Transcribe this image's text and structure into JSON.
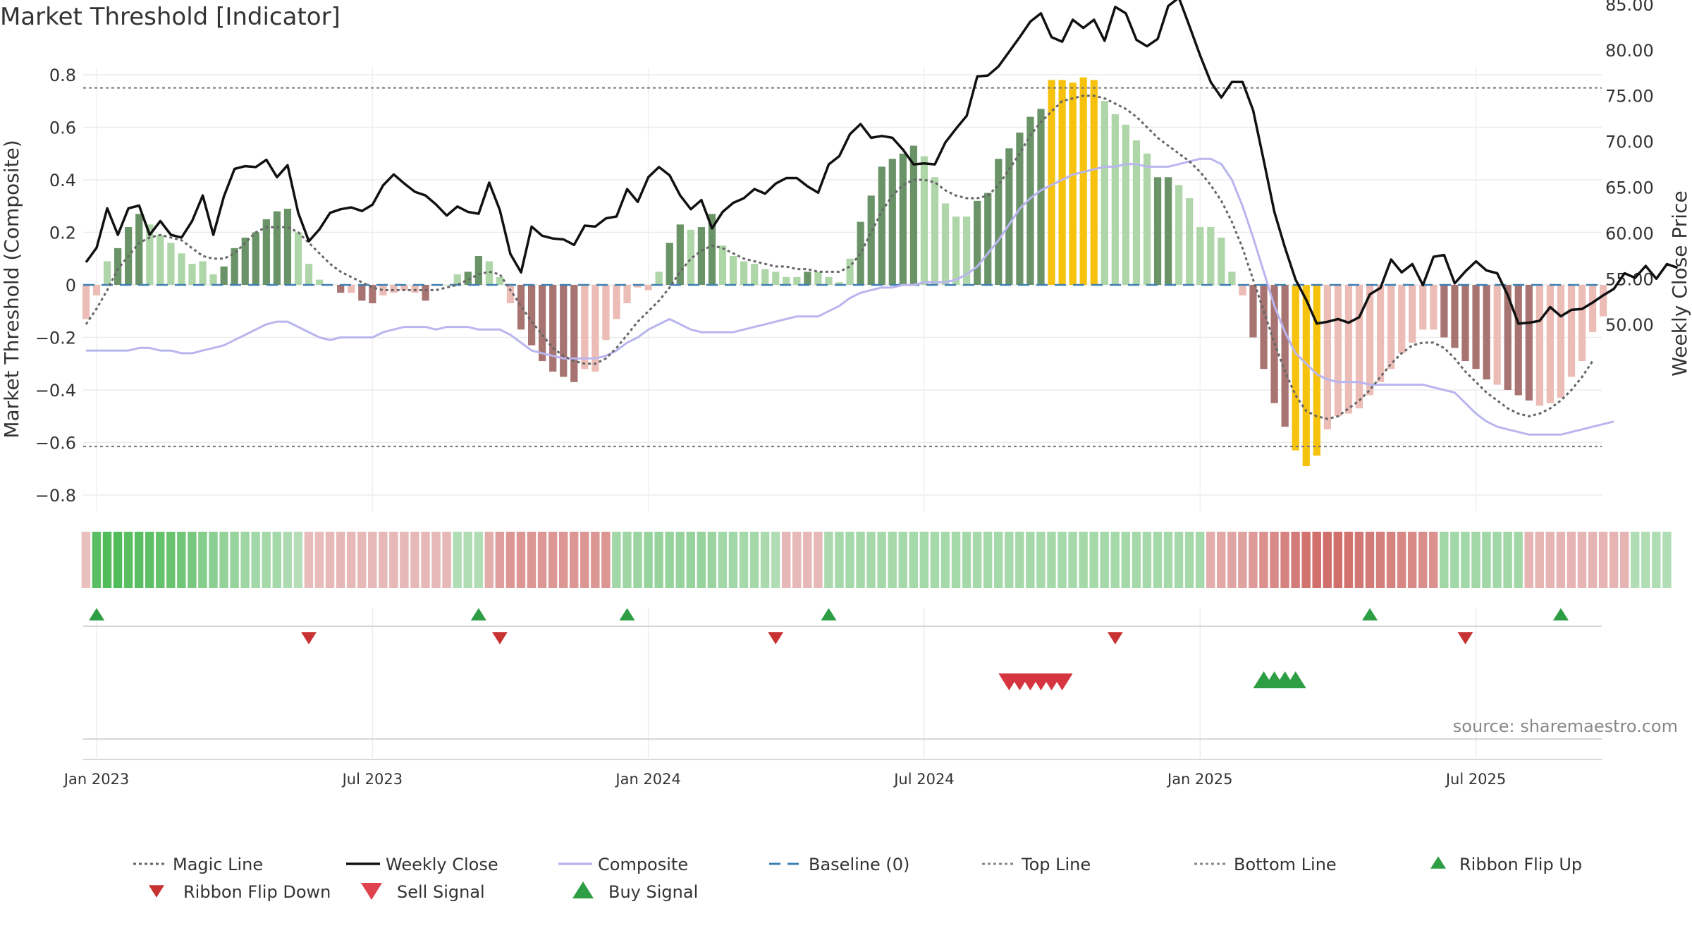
{
  "title": "Market Threshold [Indicator]",
  "source": "source: sharemaestro.com",
  "colors": {
    "strong_pos": "#6a9468",
    "weak_pos": "#aed6a8",
    "strong_neg": "#a87472",
    "weak_neg": "#ecbcb6",
    "extreme": "#f6c20e",
    "magic": "#666666",
    "close": "#111111",
    "composite": "#b9b5ee",
    "baseline": "#3f7fb0",
    "threshold": "#777777",
    "buy": "#2e9e44",
    "sell": "#d63540"
  },
  "chart_data": {
    "type": "bar",
    "title": "Market Threshold [Indicator]",
    "ylabel": "Market Threshold (Composite)",
    "y2label": "Weekly Close Price",
    "ylim": [
      -0.86,
      0.86
    ],
    "y2lim": [
      48.4,
      86.6
    ],
    "yticks": [
      0.8,
      0.6,
      0.4,
      0.2,
      0,
      -0.2,
      -0.4,
      -0.6,
      -0.8
    ],
    "ytick_labels": [
      "0.8",
      "0.6",
      "0.4",
      "0.2",
      "0",
      "−0.2",
      "−0.4",
      "−0.6",
      "−0.8"
    ],
    "y2ticks": [
      85,
      80,
      75,
      70,
      65,
      60,
      55,
      50
    ],
    "y2tick_labels": [
      "85.00",
      "80.00",
      "75.00",
      "70.00",
      "65.00",
      "60.00",
      "55.00",
      "50.00"
    ],
    "x_tick_labels": [
      {
        "label": "Jan 2023",
        "week": 1
      },
      {
        "label": "Jul 2023",
        "week": 27
      },
      {
        "label": "Jan 2024",
        "week": 53
      },
      {
        "label": "Jul 2024",
        "week": 79
      },
      {
        "label": "Jan 2025",
        "week": 105
      },
      {
        "label": "Jul 2025",
        "week": 131
      }
    ],
    "top_line": 0.75,
    "bottom_line": -0.615,
    "baseline": 0,
    "bars": [
      -0.13,
      -0.04,
      0.09,
      0.14,
      0.22,
      0.27,
      0.23,
      0.19,
      0.16,
      0.12,
      0.08,
      0.09,
      0.04,
      0.07,
      0.14,
      0.18,
      0.2,
      0.25,
      0.28,
      0.29,
      0.2,
      0.08,
      0.02,
      0,
      -0.03,
      -0.03,
      -0.06,
      -0.07,
      -0.04,
      -0.03,
      -0.02,
      -0.03,
      -0.06,
      0,
      0,
      0.04,
      0.05,
      0.11,
      0.09,
      0.03,
      -0.07,
      -0.17,
      -0.23,
      -0.29,
      -0.33,
      -0.35,
      -0.37,
      -0.32,
      -0.33,
      -0.21,
      -0.13,
      -0.07,
      -0.01,
      -0.02,
      0.05,
      0.16,
      0.23,
      0.21,
      0.22,
      0.27,
      0.15,
      0.11,
      0.09,
      0.08,
      0.06,
      0.05,
      0.03,
      0.03,
      0.05,
      0.05,
      0.03,
      0.01,
      0.1,
      0.24,
      0.34,
      0.45,
      0.48,
      0.5,
      0.53,
      0.49,
      0.41,
      0.31,
      0.26,
      0.26,
      0.32,
      0.35,
      0.48,
      0.52,
      0.58,
      0.64,
      0.67,
      0.78,
      0.78,
      0.77,
      0.79,
      0.78,
      0.7,
      0.65,
      0.61,
      0.55,
      0.5,
      0.41,
      0.41,
      0.38,
      0.33,
      0.22,
      0.22,
      0.18,
      0.05,
      -0.04,
      -0.2,
      -0.32,
      -0.45,
      -0.54,
      -0.63,
      -0.69,
      -0.65,
      -0.55,
      -0.5,
      -0.49,
      -0.47,
      -0.42,
      -0.37,
      -0.32,
      -0.26,
      -0.22,
      -0.17,
      -0.17,
      -0.2,
      -0.24,
      -0.29,
      -0.32,
      -0.36,
      -0.38,
      -0.4,
      -0.42,
      -0.44,
      -0.46,
      -0.45,
      -0.43,
      -0.35,
      -0.29,
      -0.18,
      -0.12
    ],
    "bar_category": [
      "wn",
      "wn",
      "w",
      "s",
      "s",
      "s",
      "w",
      "w",
      "w",
      "w",
      "w",
      "w",
      "w",
      "s",
      "s",
      "s",
      "s",
      "s",
      "s",
      "s",
      "w",
      "w",
      "w",
      "w",
      "sn",
      "wn",
      "sn",
      "sn",
      "wn",
      "wn",
      "wn",
      "wn",
      "sn",
      "w",
      "w",
      "w",
      "s",
      "s",
      "w",
      "w",
      "wn",
      "sn",
      "sn",
      "sn",
      "sn",
      "sn",
      "sn",
      "wn",
      "wn",
      "wn",
      "wn",
      "wn",
      "wn",
      "wn",
      "w",
      "s",
      "s",
      "w",
      "s",
      "s",
      "w",
      "w",
      "w",
      "w",
      "w",
      "w",
      "w",
      "w",
      "s",
      "w",
      "w",
      "w",
      "w",
      "s",
      "s",
      "s",
      "s",
      "s",
      "s",
      "w",
      "w",
      "w",
      "w",
      "w",
      "s",
      "s",
      "s",
      "s",
      "s",
      "s",
      "s",
      "x",
      "x",
      "x",
      "x",
      "x",
      "w",
      "w",
      "w",
      "w",
      "w",
      "s",
      "s",
      "w",
      "w",
      "w",
      "w",
      "w",
      "w",
      "wn",
      "sn",
      "sn",
      "sn",
      "sn",
      "x",
      "x",
      "x",
      "wn",
      "wn",
      "wn",
      "wn",
      "wn",
      "wn",
      "wn",
      "wn",
      "wn",
      "wn",
      "wn",
      "sn",
      "sn",
      "sn",
      "sn",
      "sn",
      "wn",
      "sn",
      "sn",
      "sn",
      "wn",
      "wn",
      "wn",
      "wn",
      "wn",
      "wn",
      "wn"
    ],
    "weekly_close": [
      56.8,
      58.4,
      62.7,
      59.8,
      62.7,
      63,
      59.8,
      61.3,
      59.8,
      59.5,
      61.3,
      64.1,
      59.8,
      64,
      67,
      67.3,
      67.2,
      68,
      66.1,
      67.4,
      62.2,
      59.1,
      60.4,
      62.2,
      62.6,
      62.8,
      62.4,
      63.1,
      65.2,
      66.4,
      65.4,
      64.5,
      64.1,
      63.1,
      61.9,
      62.9,
      62.3,
      62.1,
      65.5,
      62.5,
      57.7,
      55.7,
      60.7,
      59.7,
      59.4,
      59.3,
      58.7,
      60.8,
      60.7,
      61.6,
      61.8,
      64.8,
      63.4,
      66.1,
      67.2,
      66.3,
      64.1,
      62.6,
      63.6,
      60.5,
      62.3,
      63.3,
      63.8,
      64.8,
      64.3,
      65.4,
      66,
      66,
      65.1,
      64.4,
      67.5,
      68.4,
      70.8,
      71.9,
      70.4,
      70.6,
      70.4,
      69.1,
      67.5,
      67.6,
      67.5,
      69.9,
      71.4,
      72.8,
      77.1,
      77.2,
      78.2,
      79.8,
      81.4,
      83.1,
      84,
      81.4,
      80.9,
      83.3,
      82.4,
      83.3,
      81,
      84.7,
      84,
      81.1,
      80.4,
      81.2,
      84.8,
      85.7,
      82.6,
      79.4,
      76.5,
      74.8,
      76.5,
      76.5,
      73.4,
      67.9,
      62.3,
      58.4,
      54.9,
      52.7,
      50.1,
      50.3,
      50.6,
      50.2,
      50.8,
      53.3,
      54,
      57.1,
      55.7,
      56.6,
      54.3,
      57.4,
      57.6,
      54.5,
      55.8,
      56.9,
      55.9,
      55.6,
      53.2,
      50.1,
      50.2,
      50.4,
      51.9,
      50.9,
      51.6,
      51.7,
      52.4,
      53.2,
      53.9,
      55.6,
      55.1,
      56.4,
      55,
      56.6,
      56.2
    ],
    "magic_line": [
      -0.15,
      -0.09,
      -0.02,
      0.06,
      0.11,
      0.16,
      0.18,
      0.19,
      0.18,
      0.17,
      0.14,
      0.11,
      0.1,
      0.1,
      0.12,
      0.16,
      0.2,
      0.22,
      0.22,
      0.22,
      0.2,
      0.16,
      0.12,
      0.08,
      0.05,
      0.03,
      0.01,
      -0.01,
      -0.02,
      -0.02,
      -0.02,
      -0.02,
      -0.02,
      -0.02,
      -0.01,
      0,
      0.02,
      0.04,
      0.05,
      0.04,
      -0.02,
      -0.08,
      -0.14,
      -0.19,
      -0.24,
      -0.27,
      -0.29,
      -0.3,
      -0.3,
      -0.28,
      -0.24,
      -0.19,
      -0.14,
      -0.1,
      -0.06,
      -0.01,
      0.05,
      0.1,
      0.13,
      0.15,
      0.14,
      0.12,
      0.1,
      0.09,
      0.08,
      0.07,
      0.07,
      0.06,
      0.06,
      0.05,
      0.05,
      0.05,
      0.07,
      0.12,
      0.2,
      0.28,
      0.34,
      0.38,
      0.4,
      0.4,
      0.39,
      0.36,
      0.34,
      0.33,
      0.33,
      0.34,
      0.38,
      0.44,
      0.5,
      0.57,
      0.62,
      0.66,
      0.7,
      0.71,
      0.72,
      0.72,
      0.71,
      0.69,
      0.67,
      0.64,
      0.6,
      0.56,
      0.53,
      0.5,
      0.47,
      0.43,
      0.38,
      0.32,
      0.24,
      0.14,
      0.02,
      -0.1,
      -0.22,
      -0.33,
      -0.42,
      -0.48,
      -0.5,
      -0.51,
      -0.5,
      -0.47,
      -0.44,
      -0.4,
      -0.35,
      -0.3,
      -0.26,
      -0.23,
      -0.22,
      -0.22,
      -0.24,
      -0.28,
      -0.33,
      -0.37,
      -0.41,
      -0.44,
      -0.47,
      -0.49,
      -0.5,
      -0.49,
      -0.47,
      -0.44,
      -0.4,
      -0.35,
      -0.29
    ],
    "composite": [
      -0.25,
      -0.25,
      -0.25,
      -0.25,
      -0.25,
      -0.24,
      -0.24,
      -0.25,
      -0.25,
      -0.26,
      -0.26,
      -0.25,
      -0.24,
      -0.23,
      -0.21,
      -0.19,
      -0.17,
      -0.15,
      -0.14,
      -0.14,
      -0.16,
      -0.18,
      -0.2,
      -0.21,
      -0.2,
      -0.2,
      -0.2,
      -0.2,
      -0.18,
      -0.17,
      -0.16,
      -0.16,
      -0.16,
      -0.17,
      -0.16,
      -0.16,
      -0.16,
      -0.17,
      -0.17,
      -0.17,
      -0.19,
      -0.22,
      -0.25,
      -0.26,
      -0.27,
      -0.28,
      -0.28,
      -0.28,
      -0.28,
      -0.27,
      -0.25,
      -0.22,
      -0.2,
      -0.17,
      -0.15,
      -0.13,
      -0.15,
      -0.17,
      -0.18,
      -0.18,
      -0.18,
      -0.18,
      -0.17,
      -0.16,
      -0.15,
      -0.14,
      -0.13,
      -0.12,
      -0.12,
      -0.12,
      -0.1,
      -0.08,
      -0.05,
      -0.03,
      -0.02,
      -0.01,
      -0.01,
      0,
      0,
      0.01,
      0.01,
      0.01,
      0.02,
      0.04,
      0.07,
      0.12,
      0.17,
      0.23,
      0.29,
      0.33,
      0.36,
      0.38,
      0.4,
      0.42,
      0.43,
      0.44,
      0.45,
      0.45,
      0.46,
      0.46,
      0.45,
      0.45,
      0.45,
      0.46,
      0.47,
      0.48,
      0.48,
      0.46,
      0.4,
      0.3,
      0.18,
      0.05,
      -0.08,
      -0.18,
      -0.26,
      -0.3,
      -0.34,
      -0.36,
      -0.37,
      -0.37,
      -0.37,
      -0.38,
      -0.38,
      -0.38,
      -0.38,
      -0.38,
      -0.38,
      -0.39,
      -0.4,
      -0.41,
      -0.45,
      -0.49,
      -0.52,
      -0.54,
      -0.55,
      -0.56,
      -0.57,
      -0.57,
      -0.57,
      -0.57,
      -0.56,
      -0.55,
      -0.54,
      -0.53,
      -0.52
    ],
    "ribbon": [
      -0.18,
      0.8,
      0.85,
      0.85,
      0.8,
      0.8,
      0.78,
      0.75,
      0.72,
      0.68,
      0.62,
      0.56,
      0.52,
      0.48,
      0.45,
      0.42,
      0.4,
      0.38,
      0.36,
      0.32,
      0.28,
      -0.2,
      -0.2,
      -0.22,
      -0.22,
      -0.22,
      -0.22,
      -0.22,
      -0.22,
      -0.22,
      -0.22,
      -0.22,
      -0.22,
      -0.22,
      -0.22,
      0.3,
      0.3,
      0.3,
      -0.3,
      -0.38,
      -0.42,
      -0.42,
      -0.42,
      -0.42,
      -0.42,
      -0.42,
      -0.42,
      -0.42,
      -0.42,
      -0.42,
      0.4,
      0.42,
      0.44,
      0.46,
      0.46,
      0.46,
      0.46,
      0.46,
      0.46,
      0.44,
      0.4,
      0.4,
      0.38,
      0.36,
      0.34,
      0.3,
      -0.22,
      -0.22,
      -0.22,
      -0.22,
      0.34,
      0.36,
      0.36,
      0.36,
      0.36,
      0.36,
      0.36,
      0.36,
      0.36,
      0.36,
      0.36,
      0.36,
      0.36,
      0.36,
      0.36,
      0.36,
      0.36,
      0.36,
      0.36,
      0.36,
      0.36,
      0.36,
      0.36,
      0.36,
      0.36,
      0.36,
      0.36,
      0.36,
      0.36,
      0.36,
      0.36,
      0.36,
      0.36,
      0.36,
      0.36,
      0.36,
      -0.3,
      -0.32,
      -0.34,
      -0.36,
      -0.4,
      -0.44,
      -0.48,
      -0.52,
      -0.56,
      -0.6,
      -0.62,
      -0.62,
      -0.62,
      -0.6,
      -0.58,
      -0.56,
      -0.54,
      -0.52,
      -0.5,
      -0.48,
      -0.46,
      -0.44,
      0.4,
      0.4,
      0.4,
      0.4,
      0.4,
      0.4,
      0.4,
      0.4,
      -0.25,
      -0.25,
      -0.25,
      -0.25,
      -0.25,
      -0.25,
      -0.25,
      -0.25,
      -0.25,
      -0.25,
      0.3,
      0.3,
      0.3,
      0.3
    ],
    "ribbon_flip_up": [
      1,
      37,
      51,
      70,
      121,
      139
    ],
    "ribbon_flip_down": [
      21,
      39,
      65,
      97,
      130
    ],
    "sell_signal": [
      87,
      88,
      89,
      90,
      91,
      92
    ],
    "buy_signal": [
      111,
      112,
      113,
      114
    ],
    "legend": [
      {
        "label": "Magic Line",
        "kind": "dotted",
        "color": "#666666"
      },
      {
        "label": "Weekly Close",
        "kind": "solid",
        "color": "#111111"
      },
      {
        "label": "Composite",
        "kind": "solid",
        "color": "#b9b5ee"
      },
      {
        "label": "Baseline (0)",
        "kind": "dashed",
        "color": "#3f7fb0"
      },
      {
        "label": "Top Line",
        "kind": "dotted",
        "color": "#888888"
      },
      {
        "label": "Bottom Line",
        "kind": "dotted",
        "color": "#888888"
      },
      {
        "label": "Ribbon Flip Up",
        "kind": "tri-up-small",
        "color": "#2e9e44"
      },
      {
        "label": "Ribbon Flip Down",
        "kind": "tri-down-small",
        "color": "#c83232"
      },
      {
        "label": "Sell Signal",
        "kind": "tri-down",
        "color": "#e0424e"
      },
      {
        "label": "Buy Signal",
        "kind": "tri-up",
        "color": "#2e9e44"
      }
    ]
  }
}
